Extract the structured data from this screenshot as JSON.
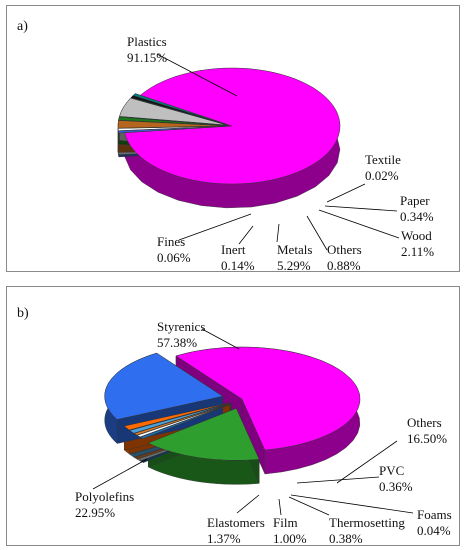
{
  "chart_data": [
    {
      "type": "pie",
      "panel_label": "a)",
      "title": "",
      "slices": [
        {
          "name": "Plastics",
          "value": 91.15,
          "value_label": "91.15%",
          "color": "#ff00ff"
        },
        {
          "name": "Textile",
          "value": 0.02,
          "value_label": "0.02%",
          "color": "#3a5fcd"
        },
        {
          "name": "Paper",
          "value": 0.34,
          "value_label": "0.34%",
          "color": "#ffffff"
        },
        {
          "name": "Wood",
          "value": 2.11,
          "value_label": "2.11%",
          "color": "#b5651d"
        },
        {
          "name": "Others",
          "value": 0.88,
          "value_label": "0.88%",
          "color": "#1a7a1a"
        },
        {
          "name": "Metals",
          "value": 5.29,
          "value_label": "5.29%",
          "color": "#bfbfbf"
        },
        {
          "name": "Inert",
          "value": 0.14,
          "value_label": "0.14%",
          "color": "#111111"
        },
        {
          "name": "Fines",
          "value": 0.06,
          "value_label": "0.06%",
          "color": "#008080"
        }
      ]
    },
    {
      "type": "pie",
      "panel_label": "b)",
      "title": "",
      "slices": [
        {
          "name": "Styrenics",
          "value": 57.38,
          "value_label": "57.38%",
          "color": "#ff00ff"
        },
        {
          "name": "Others",
          "value": 16.5,
          "value_label": "16.50%",
          "color": "#2e9e2e"
        },
        {
          "name": "PVC",
          "value": 0.36,
          "value_label": "0.36%",
          "color": "#1e6fa8"
        },
        {
          "name": "Foams",
          "value": 0.04,
          "value_label": "0.04%",
          "color": "#ffffff"
        },
        {
          "name": "Thermosetting",
          "value": 0.38,
          "value_label": "0.38%",
          "color": "#d97a2b"
        },
        {
          "name": "Film",
          "value": 1.0,
          "value_label": "1.00%",
          "color": "#4aa3d8"
        },
        {
          "name": "Elastomers",
          "value": 1.37,
          "value_label": "1.37%",
          "color": "#ff6a00"
        },
        {
          "name": "Polyolefins",
          "value": 22.95,
          "value_label": "22.95%",
          "color": "#2f6fef"
        }
      ]
    }
  ]
}
